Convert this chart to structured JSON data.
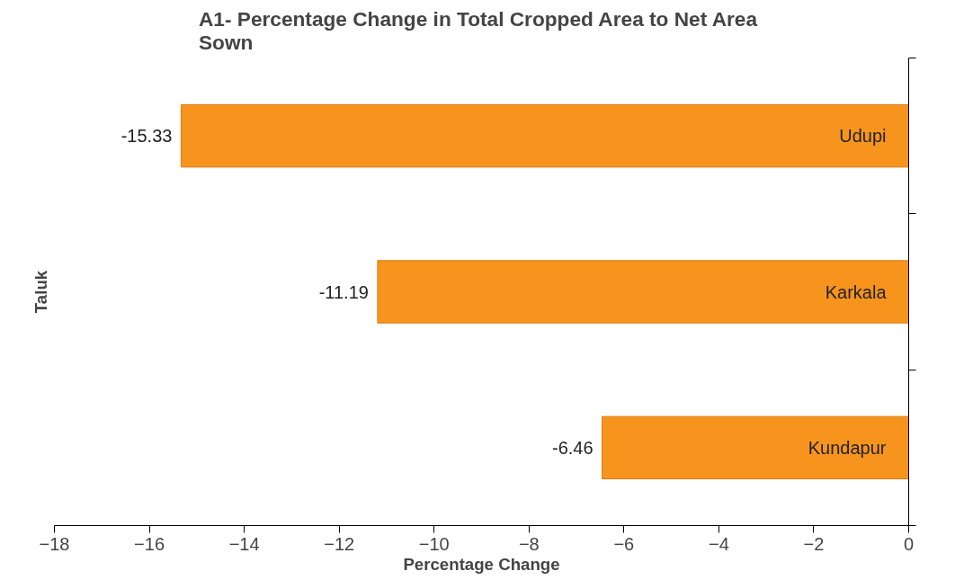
{
  "chart_data": {
    "type": "bar",
    "orientation": "horizontal",
    "title": "A1- Percentage  Change in Total Cropped Area to Net Area Sown",
    "xlabel": "Percentage Change",
    "ylabel": "Taluk",
    "categories": [
      "Udupi",
      "Karkala",
      "Kundapur"
    ],
    "values": [
      -15.33,
      -11.19,
      -6.46
    ],
    "color": "#f7941d",
    "xlim": [
      -18,
      0
    ],
    "xticks": [
      -18,
      -16,
      -14,
      -12,
      -10,
      -8,
      -6,
      -4,
      -2,
      0
    ],
    "data_labels": true,
    "grid": false
  }
}
